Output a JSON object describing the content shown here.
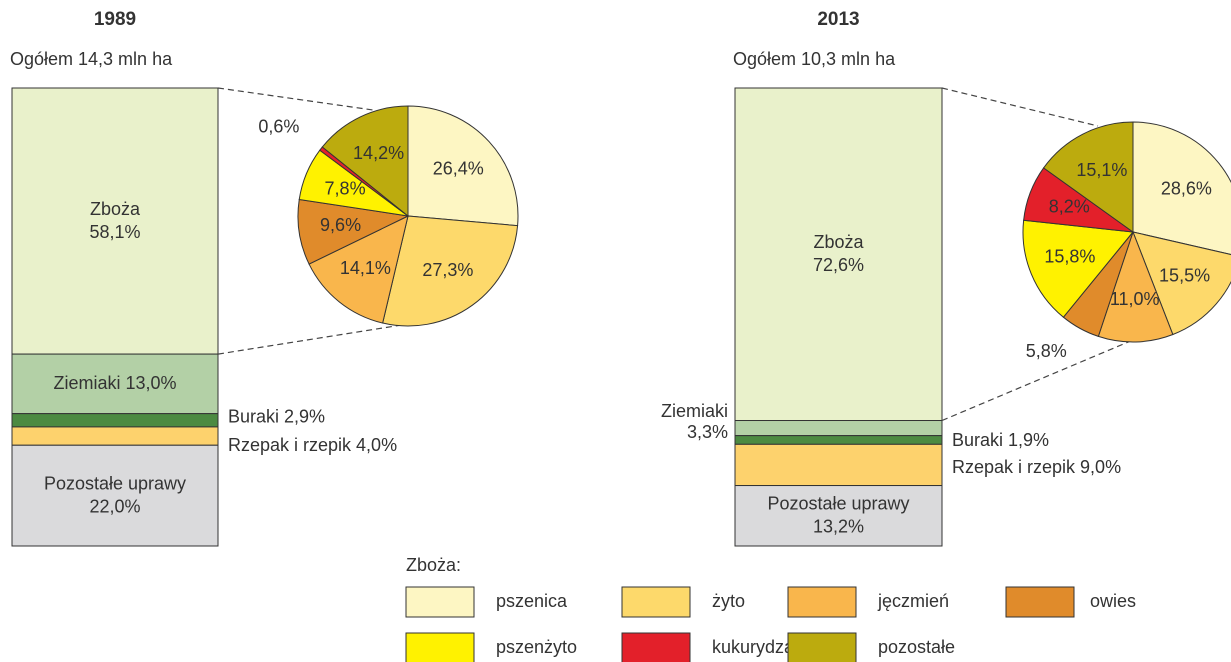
{
  "chart_data": [
    {
      "type": "bar",
      "title": "1989",
      "subtitle": "Ogółem 14,3 mln ha",
      "categories": [
        "Zboża",
        "Ziemiaki",
        "Buraki",
        "Rzepak i rzepik",
        "Pozostałe uprawy"
      ],
      "values": [
        58.1,
        13.0,
        2.9,
        4.0,
        22.0
      ],
      "value_labels": [
        "58,1%",
        "13,0%",
        "2,9%",
        "4,0%",
        "22,0%"
      ],
      "colors": [
        "#e9f1cb",
        "#b3d0a6",
        "#4c8a41",
        "#fdd26d",
        "#dadadc"
      ]
    },
    {
      "type": "pie",
      "legend_title": "Zboża:",
      "categories": [
        "pszenica",
        "żyto",
        "jęczmień",
        "owies",
        "pszenżyto",
        "kukurydza",
        "pozostałe"
      ],
      "values": [
        26.4,
        27.3,
        14.1,
        9.6,
        7.8,
        0.6,
        14.2
      ],
      "value_labels": [
        "26,4%",
        "27,3%",
        "14,1%",
        "9,6%",
        "7,8%",
        "0,6%",
        "14,2%"
      ],
      "colors": [
        "#fdf6c3",
        "#fdd96b",
        "#f9b64c",
        "#e08b2b",
        "#fff200",
        "#e3202a",
        "#bcab0e"
      ]
    },
    {
      "type": "bar",
      "title": "2013",
      "subtitle": "Ogółem 10,3 mln ha",
      "categories": [
        "Zboża",
        "Ziemiaki",
        "Buraki",
        "Rzepak i rzepik",
        "Pozostałe uprawy"
      ],
      "values": [
        72.6,
        3.3,
        1.9,
        9.0,
        13.2
      ],
      "value_labels": [
        "72,6%",
        "3,3%",
        "1,9%",
        "9,0%",
        "13,2%"
      ],
      "colors": [
        "#e9f1cb",
        "#b3d0a6",
        "#4c8a41",
        "#fdd26d",
        "#dadadc"
      ]
    },
    {
      "type": "pie",
      "categories": [
        "pszenica",
        "żyto",
        "jęczmień",
        "owies",
        "pszenżyto",
        "kukurydza",
        "pozostałe"
      ],
      "values": [
        28.6,
        15.5,
        11.0,
        5.8,
        15.8,
        8.2,
        15.1
      ],
      "value_labels": [
        "28,6%",
        "15,5%",
        "11,0%",
        "5,8%",
        "15,8%",
        "8,2%",
        "15,1%"
      ],
      "colors": [
        "#fdf6c3",
        "#fdd96b",
        "#f9b64c",
        "#e08b2b",
        "#fff200",
        "#e3202a",
        "#bcab0e"
      ]
    }
  ]
}
